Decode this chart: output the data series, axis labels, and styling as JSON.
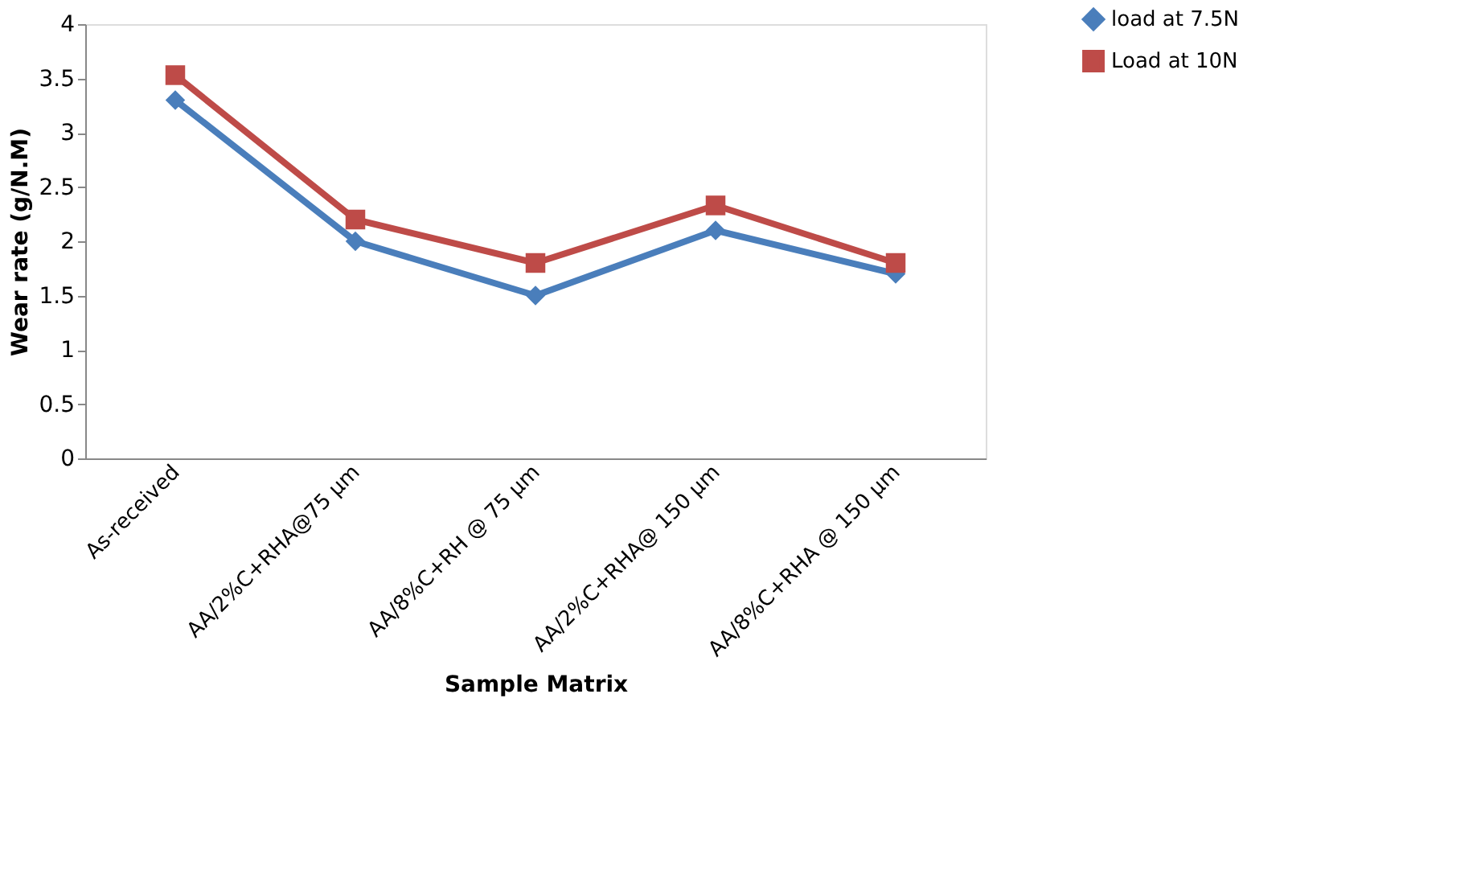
{
  "chart_data": {
    "type": "line",
    "xlabel": "Sample Matrix",
    "ylabel": "Wear rate (g/N.M)",
    "categories": [
      "As-received",
      "AA/2%C+RHA@75 µm",
      "AA/8%C+RH @ 75 µm",
      "AA/2%C+RHA@ 150 µm",
      "AA/8%C+RHA @ 150 µm"
    ],
    "series": [
      {
        "name": "load at 7.5N",
        "color": "#4a7ebb",
        "marker": "diamond",
        "values": [
          3.3,
          2.0,
          1.5,
          2.1,
          1.7
        ]
      },
      {
        "name": "Load at 10N",
        "color": "#be4b48",
        "marker": "square",
        "values": [
          3.53,
          2.2,
          1.8,
          2.33,
          1.8
        ]
      }
    ],
    "ylim": [
      0,
      4
    ],
    "yticks": [
      0,
      0.5,
      1,
      1.5,
      2,
      2.5,
      3,
      3.5,
      4
    ],
    "grid": false,
    "legend": "top right"
  }
}
